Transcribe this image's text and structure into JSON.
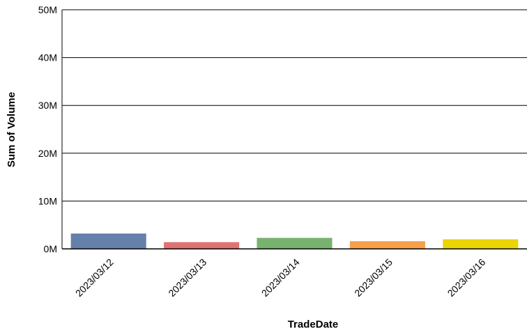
{
  "chart_data": {
    "type": "bar",
    "title": "",
    "xlabel": "TradeDate",
    "ylabel": "Sum of Volume",
    "categories": [
      "2023/03/12",
      "2023/03/13",
      "2023/03/14",
      "2023/03/15",
      "2023/03/16"
    ],
    "values": [
      3200000,
      1400000,
      2300000,
      1600000,
      2000000
    ],
    "colors": [
      "#6480ab",
      "#e07371",
      "#78b26f",
      "#f6a04b",
      "#ebd403"
    ],
    "ylim": [
      0,
      50000000
    ],
    "yticks": [
      0,
      10000000,
      20000000,
      30000000,
      40000000,
      50000000
    ],
    "ytick_labels": [
      "0M",
      "10M",
      "20M",
      "30M",
      "40M",
      "50M"
    ],
    "grid": true,
    "legend": "none"
  }
}
